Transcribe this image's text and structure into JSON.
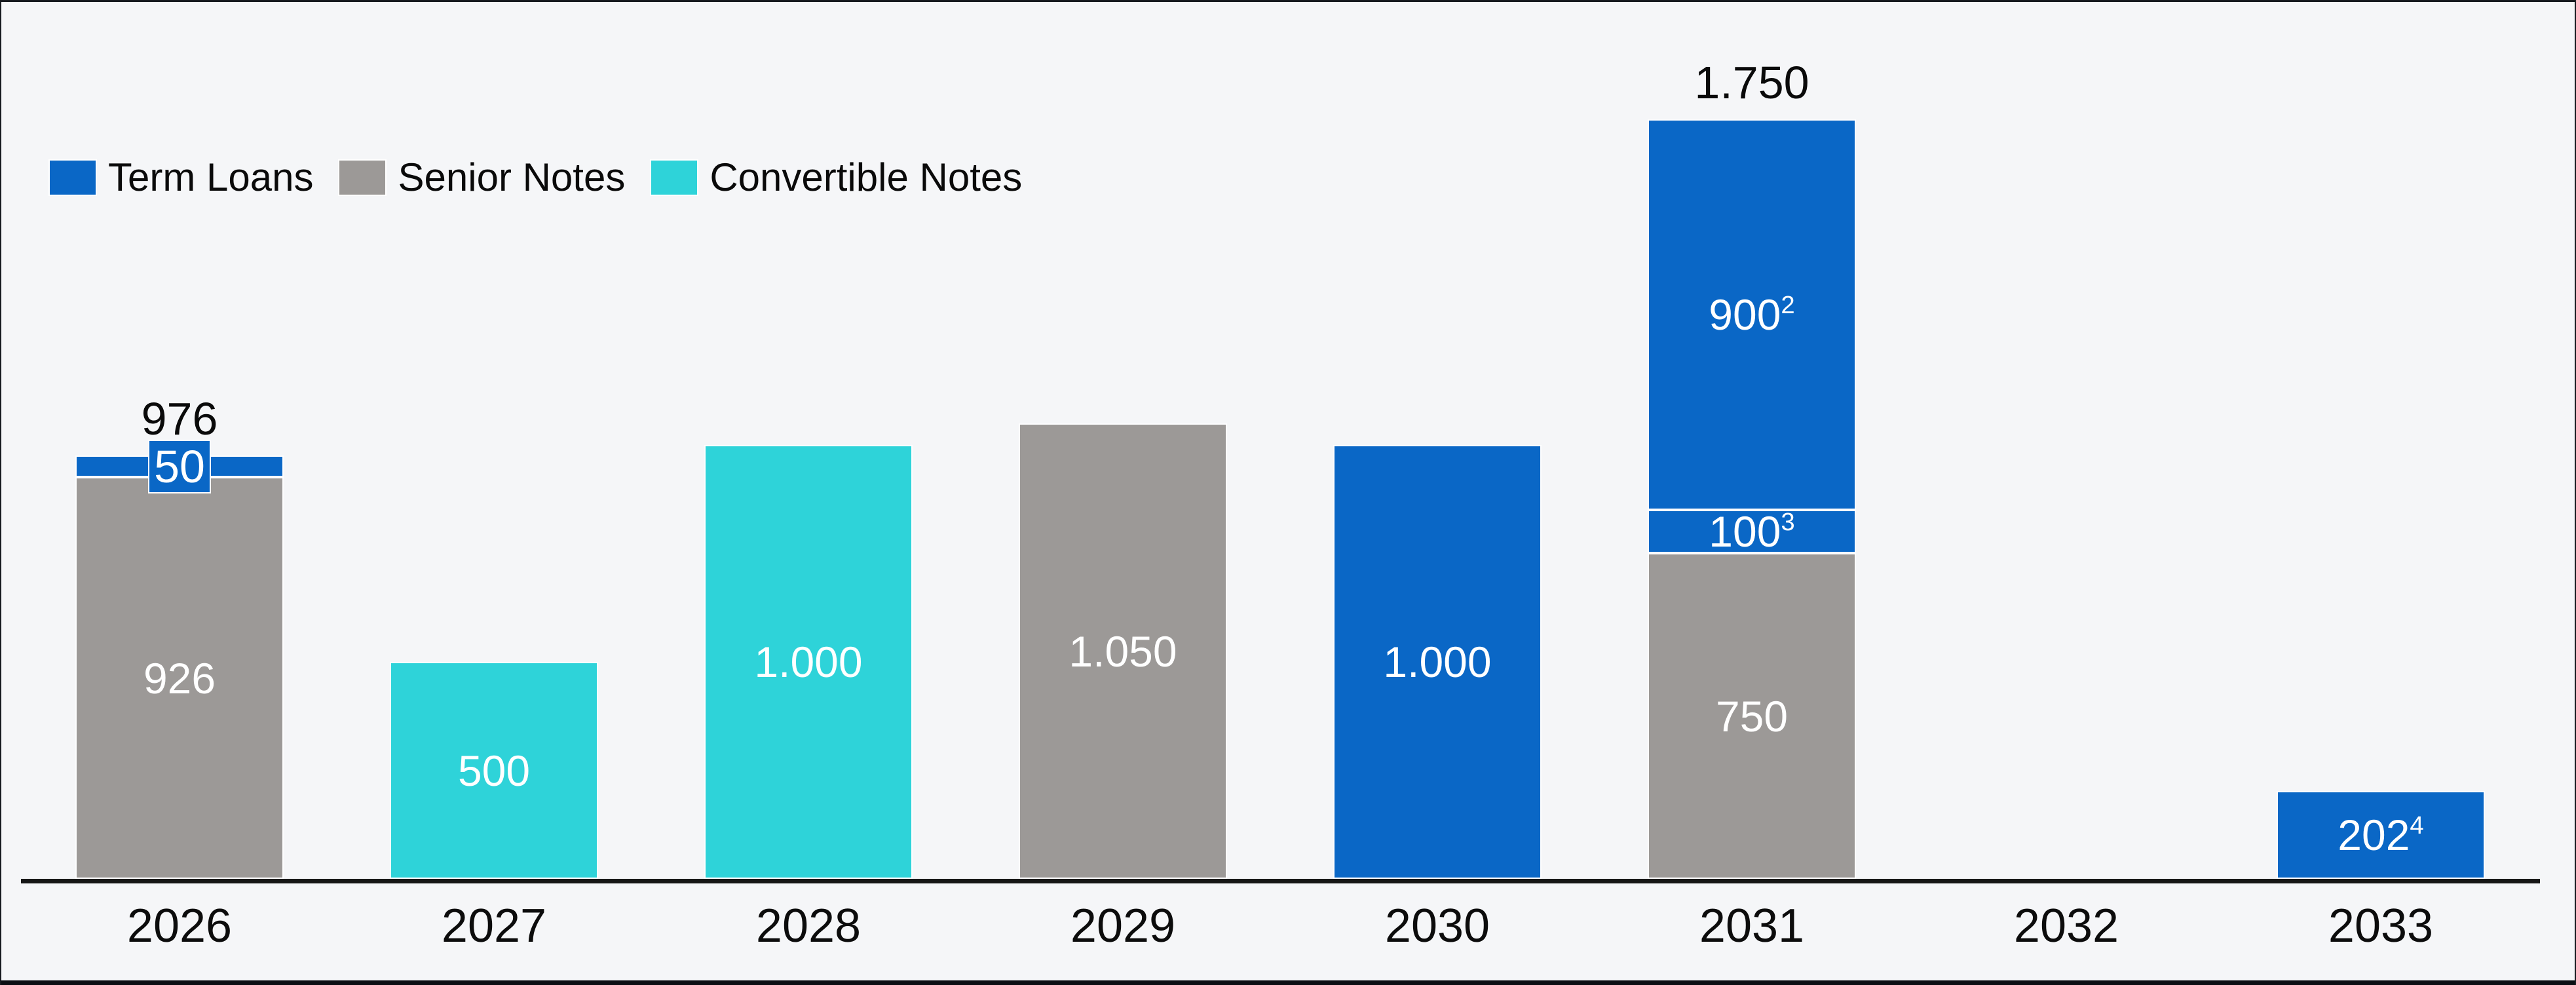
{
  "colors": {
    "term_loans": "#0a67c6",
    "senior_notes": "#9c9997",
    "convertible_notes": "#2ed3d9",
    "background": "#f5f6f8",
    "axis": "#161616",
    "bottom_band": "#0b0e13",
    "bar_outline": "#fdfdfe",
    "bar_label_text": "#ffffff",
    "text": "#0a0a0a"
  },
  "legend": {
    "items": [
      {
        "label": "Term Loans",
        "series": "term_loans"
      },
      {
        "label": "Senior Notes",
        "series": "senior_notes"
      },
      {
        "label": "Convertible Notes",
        "series": "convertible_notes"
      }
    ]
  },
  "chart_data": {
    "type": "bar",
    "stacked": true,
    "title": "",
    "xlabel": "",
    "ylabel": "",
    "y_axis_visible": false,
    "grid": false,
    "legend_position": "top-left",
    "number_format": "thousands separated by period (e.g. 1.000)",
    "ylim": [
      0,
      1750
    ],
    "categories": [
      "2026",
      "2027",
      "2028",
      "2029",
      "2030",
      "2031",
      "2032",
      "2033"
    ],
    "series": [
      {
        "name": "Term Loans",
        "key": "term_loans",
        "values": [
          50,
          0,
          0,
          0,
          1000,
          1000,
          0,
          202
        ]
      },
      {
        "name": "Senior Notes",
        "key": "senior_notes",
        "values": [
          926,
          0,
          0,
          1050,
          0,
          750,
          0,
          0
        ]
      },
      {
        "name": "Convertible Notes",
        "key": "convertible_notes",
        "values": [
          0,
          500,
          1000,
          0,
          0,
          0,
          0,
          0
        ]
      }
    ],
    "stacks": [
      {
        "category": "2026",
        "total_label": "976",
        "segments": [
          {
            "series": "term_loans",
            "value": 50,
            "label": "50",
            "callout": true
          },
          {
            "series": "senior_notes",
            "value": 926,
            "label": "926"
          }
        ]
      },
      {
        "category": "2027",
        "segments": [
          {
            "series": "convertible_notes",
            "value": 500,
            "label": "500"
          }
        ]
      },
      {
        "category": "2028",
        "segments": [
          {
            "series": "convertible_notes",
            "value": 1000,
            "label": "1.000"
          }
        ]
      },
      {
        "category": "2029",
        "segments": [
          {
            "series": "senior_notes",
            "value": 1050,
            "label": "1.050"
          }
        ]
      },
      {
        "category": "2030",
        "segments": [
          {
            "series": "term_loans",
            "value": 1000,
            "label": "1.000"
          }
        ]
      },
      {
        "category": "2031",
        "total_label": "1.750",
        "segments": [
          {
            "series": "term_loans",
            "value": 900,
            "label": "900",
            "sup": "2"
          },
          {
            "series": "term_loans",
            "value": 100,
            "label": "100",
            "sup": "3"
          },
          {
            "series": "senior_notes",
            "value": 750,
            "label": "750"
          }
        ]
      },
      {
        "category": "2032",
        "segments": []
      },
      {
        "category": "2033",
        "segments": [
          {
            "series": "term_loans",
            "value": 202,
            "label": "202",
            "sup": "4"
          }
        ]
      }
    ]
  }
}
